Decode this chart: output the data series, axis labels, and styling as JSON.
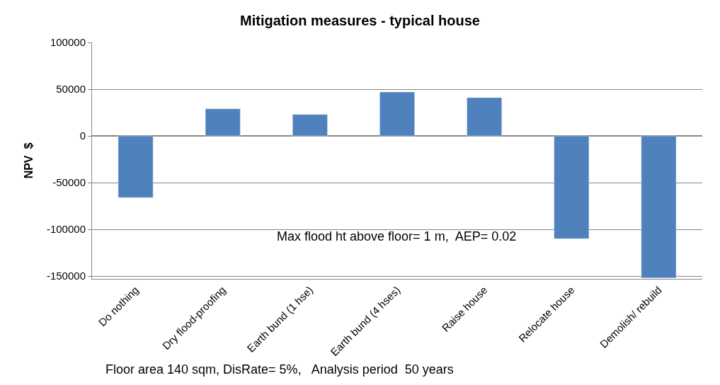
{
  "chart_data": {
    "type": "bar",
    "title": "Mitigation measures - typical house",
    "ylabel": "NPV  $",
    "categories": [
      "Do nothing",
      "Dry flood-proofing",
      "Earth bund (1 hse)",
      "Earth bund (4 hses)",
      "Raise house",
      "Relocate house",
      "Demolish/ rebuild"
    ],
    "values": [
      -66000,
      29000,
      23000,
      47000,
      41000,
      -110000,
      -152000
    ],
    "color": "#4f81bd",
    "ylim": [
      -153000,
      100000
    ],
    "yticks": [
      -150000,
      -100000,
      -50000,
      0,
      50000,
      100000
    ],
    "grid": "y",
    "annotations": [
      "Max flood ht above floor= 1 m,  AEP= 0.02",
      "Floor area 140 sqm, DisRate= 5%,   Analysis period  50 years"
    ]
  }
}
